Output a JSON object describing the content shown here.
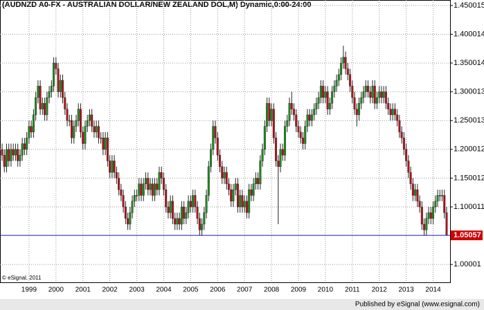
{
  "chart_data": {
    "type": "candlestick",
    "title": "(AUDNZD A0-FX - AUSTRALIAN DOLLAR/NEW ZEALAND DOL,M) Dynamic,0:00-24:00",
    "copyright": "© eSignal, 2011",
    "footer": "Published by eSignal (www.esignal.com)",
    "up_color": "#1f8a1f",
    "down_color": "#b3121a",
    "last_line_color": "#1a1aa8",
    "grid": true,
    "ylim": [
      0.969,
      1.4595
    ],
    "yticks": [
      1.00001,
      1.100011,
      1.150012,
      1.200012,
      1.250013,
      1.300013,
      1.350014,
      1.400014,
      1.450015
    ],
    "year_labels": [
      "1999",
      "2000",
      "2001",
      "2002",
      "2003",
      "2004",
      "2005",
      "2006",
      "2007",
      "2008",
      "2009",
      "2010",
      "2011",
      "2012",
      "2013",
      "2014"
    ],
    "ohlc": [
      [
        1.2,
        1.21,
        1.18,
        1.19
      ],
      [
        1.19,
        1.2,
        1.16,
        1.17
      ],
      [
        1.17,
        1.21,
        1.16,
        1.2
      ],
      [
        1.2,
        1.21,
        1.17,
        1.18
      ],
      [
        1.18,
        1.21,
        1.17,
        1.2
      ],
      [
        1.2,
        1.21,
        1.18,
        1.19
      ],
      [
        1.19,
        1.21,
        1.18,
        1.2
      ],
      [
        1.2,
        1.21,
        1.17,
        1.18
      ],
      [
        1.18,
        1.2,
        1.17,
        1.19
      ],
      [
        1.19,
        1.22,
        1.18,
        1.21
      ],
      [
        1.21,
        1.22,
        1.19,
        1.2
      ],
      [
        1.2,
        1.23,
        1.19,
        1.22
      ],
      [
        1.22,
        1.25,
        1.21,
        1.24
      ],
      [
        1.24,
        1.25,
        1.22,
        1.23
      ],
      [
        1.23,
        1.27,
        1.22,
        1.26
      ],
      [
        1.26,
        1.3,
        1.25,
        1.29
      ],
      [
        1.29,
        1.32,
        1.28,
        1.31
      ],
      [
        1.31,
        1.32,
        1.26,
        1.27
      ],
      [
        1.27,
        1.29,
        1.26,
        1.28
      ],
      [
        1.28,
        1.29,
        1.25,
        1.26
      ],
      [
        1.26,
        1.3,
        1.25,
        1.29
      ],
      [
        1.29,
        1.31,
        1.28,
        1.3
      ],
      [
        1.3,
        1.32,
        1.29,
        1.31
      ],
      [
        1.31,
        1.36,
        1.3,
        1.35
      ],
      [
        1.35,
        1.36,
        1.33,
        1.34
      ],
      [
        1.34,
        1.35,
        1.29,
        1.3
      ],
      [
        1.3,
        1.33,
        1.29,
        1.32
      ],
      [
        1.32,
        1.33,
        1.28,
        1.29
      ],
      [
        1.29,
        1.3,
        1.26,
        1.27
      ],
      [
        1.27,
        1.28,
        1.24,
        1.25
      ],
      [
        1.25,
        1.26,
        1.24,
        1.25
      ],
      [
        1.25,
        1.26,
        1.21,
        1.22
      ],
      [
        1.22,
        1.25,
        1.21,
        1.24
      ],
      [
        1.24,
        1.26,
        1.23,
        1.25
      ],
      [
        1.25,
        1.28,
        1.24,
        1.27
      ],
      [
        1.27,
        1.28,
        1.22,
        1.23
      ],
      [
        1.23,
        1.24,
        1.2,
        1.21
      ],
      [
        1.21,
        1.25,
        1.2,
        1.24
      ],
      [
        1.24,
        1.26,
        1.23,
        1.25
      ],
      [
        1.25,
        1.27,
        1.24,
        1.26
      ],
      [
        1.26,
        1.27,
        1.23,
        1.24
      ],
      [
        1.24,
        1.25,
        1.22,
        1.23
      ],
      [
        1.23,
        1.25,
        1.22,
        1.24
      ],
      [
        1.24,
        1.25,
        1.21,
        1.22
      ],
      [
        1.22,
        1.23,
        1.21,
        1.22
      ],
      [
        1.22,
        1.23,
        1.19,
        1.2
      ],
      [
        1.2,
        1.23,
        1.19,
        1.22
      ],
      [
        1.22,
        1.23,
        1.17,
        1.18
      ],
      [
        1.18,
        1.19,
        1.15,
        1.16
      ],
      [
        1.16,
        1.19,
        1.15,
        1.18
      ],
      [
        1.18,
        1.19,
        1.15,
        1.16
      ],
      [
        1.16,
        1.17,
        1.14,
        1.15
      ],
      [
        1.15,
        1.16,
        1.12,
        1.13
      ],
      [
        1.13,
        1.14,
        1.11,
        1.12
      ],
      [
        1.12,
        1.13,
        1.09,
        1.1
      ],
      [
        1.1,
        1.11,
        1.07,
        1.08
      ],
      [
        1.08,
        1.09,
        1.06,
        1.07
      ],
      [
        1.07,
        1.1,
        1.06,
        1.09
      ],
      [
        1.09,
        1.12,
        1.08,
        1.11
      ],
      [
        1.11,
        1.13,
        1.1,
        1.12
      ],
      [
        1.12,
        1.13,
        1.11,
        1.12
      ],
      [
        1.12,
        1.15,
        1.11,
        1.14
      ],
      [
        1.14,
        1.15,
        1.11,
        1.12
      ],
      [
        1.12,
        1.15,
        1.11,
        1.14
      ],
      [
        1.14,
        1.16,
        1.13,
        1.15
      ],
      [
        1.15,
        1.16,
        1.12,
        1.13
      ],
      [
        1.13,
        1.15,
        1.12,
        1.14
      ],
      [
        1.14,
        1.15,
        1.11,
        1.12
      ],
      [
        1.12,
        1.15,
        1.11,
        1.14
      ],
      [
        1.14,
        1.15,
        1.12,
        1.13
      ],
      [
        1.13,
        1.17,
        1.12,
        1.16
      ],
      [
        1.16,
        1.17,
        1.14,
        1.15
      ],
      [
        1.15,
        1.16,
        1.12,
        1.13
      ],
      [
        1.13,
        1.14,
        1.09,
        1.1
      ],
      [
        1.1,
        1.11,
        1.08,
        1.09
      ],
      [
        1.09,
        1.12,
        1.08,
        1.11
      ],
      [
        1.11,
        1.12,
        1.07,
        1.08
      ],
      [
        1.08,
        1.09,
        1.06,
        1.07
      ],
      [
        1.07,
        1.09,
        1.06,
        1.08
      ],
      [
        1.08,
        1.09,
        1.06,
        1.07
      ],
      [
        1.07,
        1.11,
        1.06,
        1.1
      ],
      [
        1.1,
        1.11,
        1.07,
        1.08
      ],
      [
        1.08,
        1.1,
        1.07,
        1.09
      ],
      [
        1.09,
        1.12,
        1.08,
        1.11
      ],
      [
        1.11,
        1.12,
        1.09,
        1.1
      ],
      [
        1.1,
        1.13,
        1.09,
        1.12
      ],
      [
        1.12,
        1.13,
        1.09,
        1.1
      ],
      [
        1.1,
        1.11,
        1.07,
        1.08
      ],
      [
        1.08,
        1.09,
        1.05,
        1.06
      ],
      [
        1.06,
        1.08,
        1.05,
        1.07
      ],
      [
        1.07,
        1.1,
        1.06,
        1.09
      ],
      [
        1.09,
        1.13,
        1.08,
        1.12
      ],
      [
        1.12,
        1.18,
        1.11,
        1.17
      ],
      [
        1.17,
        1.21,
        1.16,
        1.2
      ],
      [
        1.2,
        1.25,
        1.19,
        1.24
      ],
      [
        1.24,
        1.25,
        1.21,
        1.22
      ],
      [
        1.22,
        1.23,
        1.18,
        1.19
      ],
      [
        1.19,
        1.2,
        1.16,
        1.17
      ],
      [
        1.17,
        1.18,
        1.14,
        1.15
      ],
      [
        1.15,
        1.17,
        1.14,
        1.16
      ],
      [
        1.16,
        1.17,
        1.13,
        1.14
      ],
      [
        1.14,
        1.15,
        1.12,
        1.13
      ],
      [
        1.13,
        1.14,
        1.1,
        1.11
      ],
      [
        1.11,
        1.14,
        1.1,
        1.13
      ],
      [
        1.13,
        1.15,
        1.12,
        1.14
      ],
      [
        1.14,
        1.15,
        1.09,
        1.1
      ],
      [
        1.1,
        1.13,
        1.09,
        1.12
      ],
      [
        1.12,
        1.13,
        1.09,
        1.1
      ],
      [
        1.1,
        1.12,
        1.09,
        1.11
      ],
      [
        1.11,
        1.12,
        1.08,
        1.09
      ],
      [
        1.09,
        1.14,
        1.08,
        1.13
      ],
      [
        1.13,
        1.14,
        1.11,
        1.12
      ],
      [
        1.12,
        1.15,
        1.11,
        1.14
      ],
      [
        1.14,
        1.16,
        1.13,
        1.15
      ],
      [
        1.15,
        1.16,
        1.13,
        1.14
      ],
      [
        1.14,
        1.19,
        1.13,
        1.18
      ],
      [
        1.18,
        1.21,
        1.17,
        1.2
      ],
      [
        1.2,
        1.25,
        1.19,
        1.24
      ],
      [
        1.24,
        1.29,
        1.23,
        1.28
      ],
      [
        1.28,
        1.29,
        1.24,
        1.25
      ],
      [
        1.25,
        1.28,
        1.24,
        1.27
      ],
      [
        1.27,
        1.28,
        1.21,
        1.22
      ],
      [
        1.22,
        1.23,
        1.17,
        1.18
      ],
      [
        1.18,
        1.19,
        1.07,
        1.17
      ],
      [
        1.17,
        1.21,
        1.16,
        1.2
      ],
      [
        1.2,
        1.21,
        1.18,
        1.19
      ],
      [
        1.19,
        1.25,
        1.18,
        1.24
      ],
      [
        1.24,
        1.26,
        1.23,
        1.25
      ],
      [
        1.25,
        1.29,
        1.24,
        1.28
      ],
      [
        1.28,
        1.3,
        1.26,
        1.27
      ],
      [
        1.27,
        1.28,
        1.25,
        1.26
      ],
      [
        1.26,
        1.27,
        1.23,
        1.24
      ],
      [
        1.24,
        1.25,
        1.22,
        1.23
      ],
      [
        1.23,
        1.24,
        1.21,
        1.22
      ],
      [
        1.22,
        1.23,
        1.2,
        1.21
      ],
      [
        1.21,
        1.25,
        1.2,
        1.24
      ],
      [
        1.24,
        1.27,
        1.23,
        1.26
      ],
      [
        1.26,
        1.27,
        1.24,
        1.25
      ],
      [
        1.25,
        1.27,
        1.24,
        1.26
      ],
      [
        1.26,
        1.28,
        1.25,
        1.27
      ],
      [
        1.27,
        1.29,
        1.26,
        1.28
      ],
      [
        1.28,
        1.3,
        1.27,
        1.29
      ],
      [
        1.29,
        1.32,
        1.28,
        1.31
      ],
      [
        1.31,
        1.32,
        1.28,
        1.29
      ],
      [
        1.29,
        1.31,
        1.28,
        1.3
      ],
      [
        1.3,
        1.31,
        1.26,
        1.27
      ],
      [
        1.27,
        1.29,
        1.26,
        1.28
      ],
      [
        1.28,
        1.31,
        1.27,
        1.3
      ],
      [
        1.3,
        1.32,
        1.29,
        1.31
      ],
      [
        1.31,
        1.33,
        1.3,
        1.32
      ],
      [
        1.32,
        1.34,
        1.31,
        1.33
      ],
      [
        1.33,
        1.36,
        1.32,
        1.35
      ],
      [
        1.35,
        1.38,
        1.34,
        1.36
      ],
      [
        1.36,
        1.37,
        1.33,
        1.34
      ],
      [
        1.34,
        1.35,
        1.32,
        1.33
      ],
      [
        1.33,
        1.34,
        1.3,
        1.31
      ],
      [
        1.31,
        1.32,
        1.28,
        1.29
      ],
      [
        1.29,
        1.3,
        1.26,
        1.27
      ],
      [
        1.27,
        1.28,
        1.24,
        1.26
      ],
      [
        1.26,
        1.29,
        1.25,
        1.28
      ],
      [
        1.28,
        1.3,
        1.27,
        1.29
      ],
      [
        1.29,
        1.31,
        1.28,
        1.3
      ],
      [
        1.3,
        1.32,
        1.29,
        1.31
      ],
      [
        1.31,
        1.32,
        1.29,
        1.3
      ],
      [
        1.3,
        1.31,
        1.28,
        1.29
      ],
      [
        1.29,
        1.32,
        1.28,
        1.31
      ],
      [
        1.31,
        1.32,
        1.27,
        1.28
      ],
      [
        1.28,
        1.3,
        1.27,
        1.29
      ],
      [
        1.29,
        1.31,
        1.28,
        1.3
      ],
      [
        1.3,
        1.31,
        1.28,
        1.29
      ],
      [
        1.29,
        1.31,
        1.28,
        1.3
      ],
      [
        1.3,
        1.31,
        1.27,
        1.28
      ],
      [
        1.28,
        1.29,
        1.26,
        1.27
      ],
      [
        1.27,
        1.28,
        1.25,
        1.26
      ],
      [
        1.26,
        1.28,
        1.25,
        1.27
      ],
      [
        1.27,
        1.28,
        1.25,
        1.26
      ],
      [
        1.26,
        1.27,
        1.24,
        1.25
      ],
      [
        1.25,
        1.26,
        1.22,
        1.23
      ],
      [
        1.23,
        1.24,
        1.21,
        1.22
      ],
      [
        1.22,
        1.23,
        1.19,
        1.2
      ],
      [
        1.2,
        1.21,
        1.17,
        1.18
      ],
      [
        1.18,
        1.19,
        1.15,
        1.16
      ],
      [
        1.16,
        1.17,
        1.13,
        1.14
      ],
      [
        1.14,
        1.15,
        1.11,
        1.12
      ],
      [
        1.12,
        1.14,
        1.11,
        1.13
      ],
      [
        1.13,
        1.14,
        1.1,
        1.11
      ],
      [
        1.11,
        1.12,
        1.09,
        1.1
      ],
      [
        1.1,
        1.11,
        1.06,
        1.07
      ],
      [
        1.07,
        1.08,
        1.05,
        1.06
      ],
      [
        1.06,
        1.09,
        1.05,
        1.08
      ],
      [
        1.08,
        1.1,
        1.07,
        1.09
      ],
      [
        1.09,
        1.1,
        1.07,
        1.08
      ],
      [
        1.08,
        1.11,
        1.07,
        1.1
      ],
      [
        1.1,
        1.12,
        1.09,
        1.11
      ],
      [
        1.11,
        1.13,
        1.1,
        1.12
      ],
      [
        1.12,
        1.13,
        1.11,
        1.12
      ],
      [
        1.12,
        1.13,
        1.11,
        1.12
      ],
      [
        1.12,
        1.13,
        1.08,
        1.09
      ],
      [
        1.09,
        1.1,
        1.05,
        1.05057
      ]
    ]
  }
}
